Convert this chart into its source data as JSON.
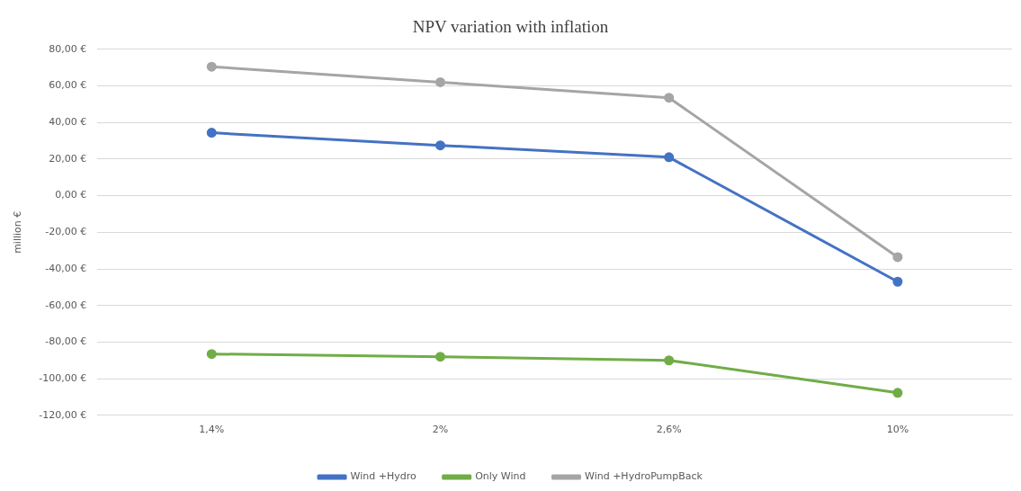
{
  "chart_data": {
    "type": "line",
    "title": "NPV variation with inflation",
    "ylabel": "million €",
    "categories": [
      "1,4%",
      "2%",
      "2,6%",
      "10%"
    ],
    "series": [
      {
        "name": "Wind +Hydro",
        "color": "#4472c4",
        "values": [
          34.4,
          27.5,
          21,
          -47
        ]
      },
      {
        "name": "Only Wind",
        "color": "#70ad47",
        "values": [
          -86.5,
          -88,
          -90,
          -107.7
        ]
      },
      {
        "name": "Wind +HydroPumpBack",
        "color": "#a5a5a5",
        "values": [
          70.5,
          62,
          53.5,
          -33.6
        ]
      }
    ],
    "ylim": [
      -120,
      80
    ],
    "yticks": [
      {
        "value": -120,
        "label": "-120,00 €"
      },
      {
        "value": -100,
        "label": "-100,00 €"
      },
      {
        "value": -80,
        "label": "-80,00 €"
      },
      {
        "value": -60,
        "label": "-60,00 €"
      },
      {
        "value": -40,
        "label": "-40,00 €"
      },
      {
        "value": -20,
        "label": "-20,00 €"
      },
      {
        "value": 0,
        "label": "0,00 €"
      },
      {
        "value": 20,
        "label": "20,00 €"
      },
      {
        "value": 40,
        "label": "40,00 €"
      },
      {
        "value": 60,
        "label": "60,00 €"
      },
      {
        "value": 80,
        "label": "80,00 €"
      }
    ],
    "grid": "y",
    "legend": "bottom",
    "marker": "circle",
    "line_style": "solid"
  }
}
